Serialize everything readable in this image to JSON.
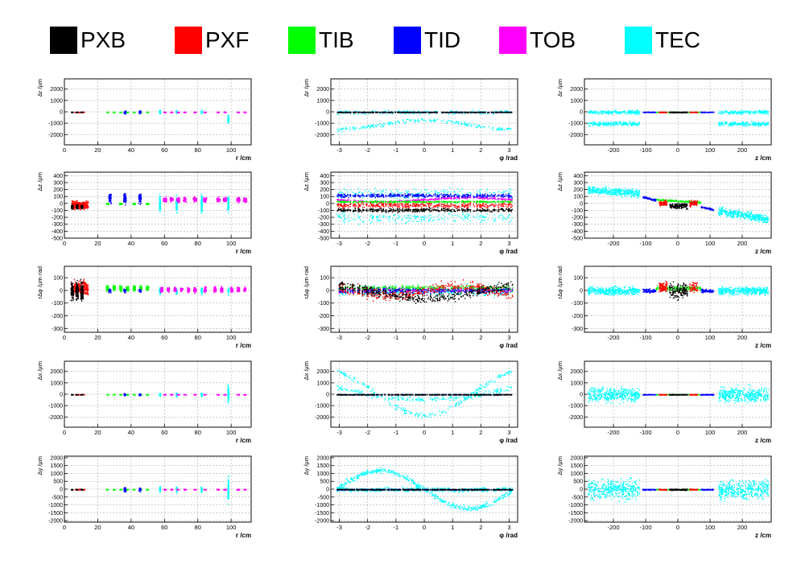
{
  "legend": [
    {
      "name": "PXB",
      "color": "#000000"
    },
    {
      "name": "PXF",
      "color": "#ff0000"
    },
    {
      "name": "TIB",
      "color": "#00ff00"
    },
    {
      "name": "TID",
      "color": "#0000ff"
    },
    {
      "name": "TOB",
      "color": "#ff00ff"
    },
    {
      "name": "TEC",
      "color": "#00ffff"
    }
  ],
  "chart_data": [
    {
      "type": "scatter",
      "xlabel": "r /cm",
      "ylabel": "Δr /µm",
      "xlim": [
        0,
        112
      ],
      "ylim": [
        -2900,
        2900
      ],
      "xticks": [
        0,
        20,
        40,
        60,
        80,
        100
      ],
      "yticks": [
        -2000,
        -1000,
        0,
        1000,
        2000
      ],
      "grid": true
    },
    {
      "type": "scatter",
      "xlabel": "φ /rad",
      "ylabel": "Δr /µm",
      "xlim": [
        -3.3,
        3.3
      ],
      "ylim": [
        -2900,
        2900
      ],
      "xticks": [
        -3,
        -2,
        -1,
        0,
        1,
        2,
        3
      ],
      "yticks": [
        -2000,
        -1000,
        0,
        1000,
        2000
      ],
      "grid": true
    },
    {
      "type": "scatter",
      "xlabel": "z /cm",
      "ylabel": "Δr /µm",
      "xlim": [
        -290,
        290
      ],
      "ylim": [
        -2900,
        2900
      ],
      "xticks": [
        -200,
        -100,
        0,
        100,
        200
      ],
      "yticks": [
        -2000,
        -1000,
        0,
        1000,
        2000
      ],
      "grid": true
    },
    {
      "type": "scatter",
      "xlabel": "r /cm",
      "ylabel": "Δz /µm",
      "xlim": [
        0,
        112
      ],
      "ylim": [
        -500,
        450
      ],
      "xticks": [
        0,
        20,
        40,
        60,
        80,
        100
      ],
      "yticks": [
        -500,
        -400,
        -300,
        -200,
        -100,
        0,
        100,
        200,
        300,
        400
      ],
      "grid": true
    },
    {
      "type": "scatter",
      "xlabel": "φ /rad",
      "ylabel": "Δz /µm",
      "xlim": [
        -3.3,
        3.3
      ],
      "ylim": [
        -500,
        450
      ],
      "xticks": [
        -3,
        -2,
        -1,
        0,
        1,
        2,
        3
      ],
      "yticks": [
        -500,
        -400,
        -300,
        -200,
        -100,
        0,
        100,
        200,
        300,
        400
      ],
      "grid": true
    },
    {
      "type": "scatter",
      "xlabel": "z /cm",
      "ylabel": "Δz /µm",
      "xlim": [
        -290,
        290
      ],
      "ylim": [
        -500,
        450
      ],
      "xticks": [
        -200,
        -100,
        0,
        100,
        200
      ],
      "yticks": [
        -500,
        -400,
        -300,
        -200,
        -100,
        0,
        100,
        200,
        300,
        400
      ],
      "grid": true
    },
    {
      "type": "scatter",
      "xlabel": "r /cm",
      "ylabel": "rΔφ /µm·rad",
      "xlim": [
        0,
        112
      ],
      "ylim": [
        -330,
        190
      ],
      "xticks": [
        0,
        20,
        40,
        60,
        80,
        100
      ],
      "yticks": [
        -300,
        -200,
        -100,
        0,
        100
      ],
      "grid": true
    },
    {
      "type": "scatter",
      "xlabel": "φ /rad",
      "ylabel": "rΔφ /µm·rad",
      "xlim": [
        -3.3,
        3.3
      ],
      "ylim": [
        -330,
        190
      ],
      "xticks": [
        -3,
        -2,
        -1,
        0,
        1,
        2,
        3
      ],
      "yticks": [
        -300,
        -200,
        -100,
        0,
        100
      ],
      "grid": true
    },
    {
      "type": "scatter",
      "xlabel": "z /cm",
      "ylabel": "rΔφ /µm·rad",
      "xlim": [
        -290,
        290
      ],
      "ylim": [
        -330,
        190
      ],
      "xticks": [
        -200,
        -100,
        0,
        100,
        200
      ],
      "yticks": [
        -300,
        -200,
        -100,
        0,
        100
      ],
      "grid": true
    },
    {
      "type": "scatter",
      "xlabel": "r /cm",
      "ylabel": "Δx /µm",
      "xlim": [
        0,
        112
      ],
      "ylim": [
        -2900,
        2900
      ],
      "xticks": [
        0,
        20,
        40,
        60,
        80,
        100
      ],
      "yticks": [
        -2000,
        -1000,
        0,
        1000,
        2000
      ],
      "grid": true
    },
    {
      "type": "scatter",
      "xlabel": "φ /rad",
      "ylabel": "Δx /µm",
      "xlim": [
        -3.3,
        3.3
      ],
      "ylim": [
        -2900,
        2900
      ],
      "xticks": [
        -3,
        -2,
        -1,
        0,
        1,
        2,
        3
      ],
      "yticks": [
        -2000,
        -1000,
        0,
        1000,
        2000
      ],
      "grid": true
    },
    {
      "type": "scatter",
      "xlabel": "z /cm",
      "ylabel": "Δx /µm",
      "xlim": [
        -290,
        290
      ],
      "ylim": [
        -2900,
        2900
      ],
      "xticks": [
        -200,
        -100,
        0,
        100,
        200
      ],
      "yticks": [
        -2000,
        -1000,
        0,
        1000,
        2000
      ],
      "grid": true
    },
    {
      "type": "scatter",
      "xlabel": "r /cm",
      "ylabel": "Δy /µm",
      "xlim": [
        0,
        112
      ],
      "ylim": [
        -2100,
        2100
      ],
      "xticks": [
        0,
        20,
        40,
        60,
        80,
        100
      ],
      "yticks": [
        -2000,
        -1500,
        -1000,
        -500,
        0,
        500,
        1000,
        1500,
        2000
      ],
      "grid": true
    },
    {
      "type": "scatter",
      "xlabel": "φ /rad",
      "ylabel": "Δy /µm",
      "xlim": [
        -3.3,
        3.3
      ],
      "ylim": [
        -2100,
        2100
      ],
      "xticks": [
        -3,
        -2,
        -1,
        0,
        1,
        2,
        3
      ],
      "yticks": [
        -2000,
        -1500,
        -1000,
        -500,
        0,
        500,
        1000,
        1500,
        2000
      ],
      "grid": true
    },
    {
      "type": "scatter",
      "xlabel": "z /cm",
      "ylabel": "Δy /µm",
      "xlim": [
        -290,
        290
      ],
      "ylim": [
        -2100,
        2100
      ],
      "xticks": [
        -200,
        -100,
        0,
        100,
        200
      ],
      "yticks": [
        -2000,
        -1500,
        -1000,
        -500,
        0,
        500,
        1000,
        1500,
        2000
      ],
      "grid": true
    }
  ]
}
